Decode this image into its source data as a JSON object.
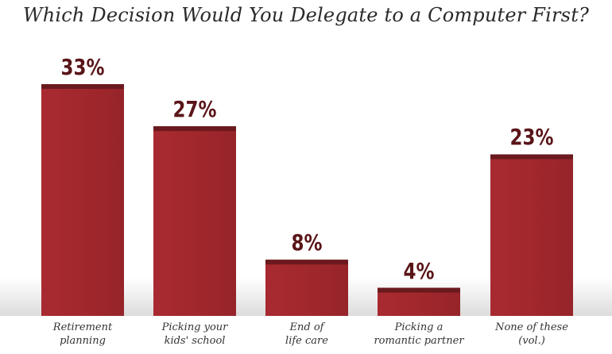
{
  "chart_data": {
    "type": "bar",
    "title": "Which Decision Would You Delegate to a Computer First?",
    "categories": [
      "Retirement\nplanning",
      "Picking your\nkids' school",
      "End of\nlife care",
      "Picking a\nromantic partner",
      "None of these\n(vol.)"
    ],
    "values": [
      33,
      27,
      8,
      4,
      23
    ],
    "value_labels": [
      "33%",
      "27%",
      "8%",
      "4%",
      "23%"
    ],
    "xlabel": "",
    "ylabel": "",
    "ylim": [
      0,
      33
    ],
    "grid": false,
    "legend": "none",
    "colors": {
      "bar": "#a1282d",
      "bar_cap": "#6a1a1e",
      "value_text": "#5a1519",
      "title_text": "#2a2a2a"
    }
  }
}
